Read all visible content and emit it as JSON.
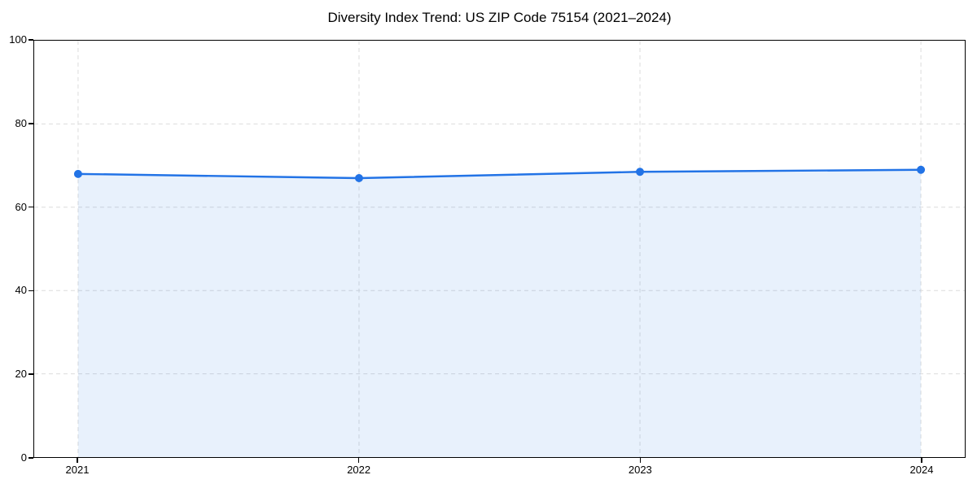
{
  "chart_data": {
    "type": "line",
    "title": "Diversity Index Trend: US ZIP Code 75154 (2021–2024)",
    "categories": [
      "2021",
      "2022",
      "2023",
      "2024"
    ],
    "series": [
      {
        "name": "Diversity Index",
        "values": [
          68,
          67,
          68.5,
          69
        ]
      }
    ],
    "xlabel": "",
    "ylabel": "",
    "ylim": [
      0,
      100
    ],
    "yticks": [
      0,
      20,
      40,
      60,
      80,
      100
    ],
    "grid": true,
    "grid_style": "dashed",
    "legend": false,
    "marker": "circle",
    "colors": {
      "line": "#2273e6",
      "marker": "#2273e6",
      "area_fill": "rgba(34,115,230,0.10)",
      "grid": "#dcdcdc",
      "spine": "#000000",
      "text": "#000000",
      "background": "#ffffff"
    }
  }
}
